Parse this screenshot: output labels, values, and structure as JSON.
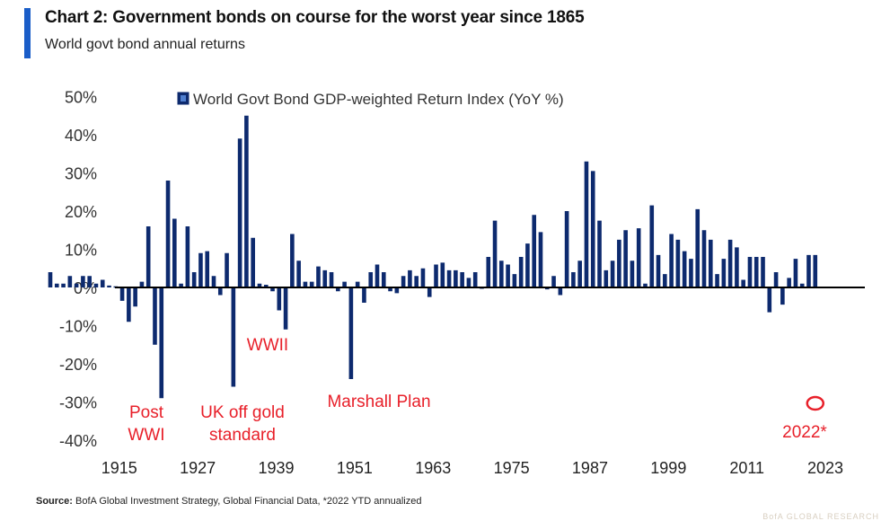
{
  "header": {
    "title": "Chart 2: Government bonds on course for the worst year since 1865",
    "subtitle": "World govt bond annual returns",
    "accent_color": "#1a5dc8"
  },
  "footer": {
    "source_label": "Source:",
    "source_text": "BofA Global Investment Strategy, Global Financial Data, *2022 YTD annualized",
    "watermark": "BofA GLOBAL RESEARCH"
  },
  "chart_data": {
    "type": "bar",
    "title": "Chart 2: Government bonds on course for the worst year since 1865",
    "subtitle": "World govt bond annual returns",
    "xlabel": "",
    "ylabel": "",
    "ylim": [
      -40,
      50
    ],
    "yticks": [
      50,
      40,
      30,
      20,
      10,
      0,
      -10,
      -20,
      -30,
      -40
    ],
    "ytick_labels": [
      "50%",
      "40%",
      "30%",
      "20%",
      "10%",
      "0%",
      "-10%",
      "-20%",
      "-30%",
      "-40%"
    ],
    "xticks": [
      1915,
      1927,
      1939,
      1951,
      1963,
      1975,
      1987,
      1999,
      2011,
      2023
    ],
    "xtick_labels": [
      "1915",
      "1927",
      "1939",
      "1951",
      "1963",
      "1975",
      "1987",
      "1999",
      "2011",
      "2023"
    ],
    "x_range": [
      1904,
      2030
    ],
    "grid": false,
    "legend": {
      "position": "top",
      "entries": [
        "World Govt Bond GDP-weighted Return Index (YoY %)"
      ]
    },
    "bar_color": "#0d2a6e",
    "annotation_color": "#e8202a",
    "annotations": [
      {
        "text": [
          "Post",
          "WWI"
        ],
        "year": 1920
      },
      {
        "text": [
          "UK off gold",
          "standard"
        ],
        "year": 1931
      },
      {
        "text": [
          "WWII"
        ],
        "year": 1940
      },
      {
        "text": [
          "Marshall Plan"
        ],
        "year": 1949
      },
      {
        "text": [
          "2022*"
        ],
        "year": 2022,
        "circle": true
      }
    ],
    "series": [
      {
        "name": "World Govt Bond GDP-weighted Return Index (YoY %)",
        "years": [
          1905,
          1906,
          1907,
          1908,
          1909,
          1910,
          1911,
          1912,
          1913,
          1914,
          1915,
          1916,
          1917,
          1918,
          1919,
          1920,
          1921,
          1922,
          1923,
          1924,
          1925,
          1926,
          1927,
          1928,
          1929,
          1930,
          1931,
          1932,
          1933,
          1934,
          1935,
          1936,
          1937,
          1938,
          1939,
          1940,
          1941,
          1942,
          1943,
          1944,
          1945,
          1946,
          1947,
          1948,
          1949,
          1950,
          1951,
          1952,
          1953,
          1954,
          1955,
          1956,
          1957,
          1958,
          1959,
          1960,
          1961,
          1962,
          1963,
          1964,
          1965,
          1966,
          1967,
          1968,
          1969,
          1970,
          1971,
          1972,
          1973,
          1974,
          1975,
          1976,
          1977,
          1978,
          1979,
          1980,
          1981,
          1982,
          1983,
          1984,
          1985,
          1986,
          1987,
          1988,
          1989,
          1990,
          1991,
          1992,
          1993,
          1994,
          1995,
          1996,
          1997,
          1998,
          1999,
          2000,
          2001,
          2002,
          2003,
          2004,
          2005,
          2006,
          2007,
          2008,
          2009,
          2010,
          2011,
          2012,
          2013,
          2014,
          2015,
          2016,
          2017,
          2018,
          2019,
          2020,
          2021,
          2022
        ],
        "values": [
          4,
          1,
          1,
          3,
          1,
          3,
          3,
          1,
          2,
          0.5,
          0.3,
          -3.5,
          -9,
          -5,
          1.5,
          16,
          -15,
          -29,
          28,
          18,
          1,
          16,
          4,
          9,
          9.5,
          3,
          -2,
          9,
          -26,
          39,
          45,
          13,
          1,
          0.7,
          -1,
          -6,
          -11,
          14,
          7,
          1.5,
          1.5,
          5.5,
          4.5,
          4,
          -1,
          1.5,
          -24,
          1.5,
          -4,
          4,
          6,
          4,
          -1,
          -1.5,
          3,
          4.5,
          3,
          5,
          -2.5,
          6,
          6.5,
          4.5,
          4.5,
          4,
          2.5,
          4,
          -0.3,
          8,
          17.5,
          7,
          6,
          3.5,
          8,
          11.5,
          19,
          14.5,
          -0.5,
          3,
          -2,
          20,
          4,
          7,
          33,
          30.5,
          17.5,
          4.5,
          7,
          12.5,
          15,
          7,
          15.5,
          1,
          21.5,
          8.5,
          3.5,
          14,
          12.5,
          9.5,
          7.5,
          20.5,
          15,
          12.5,
          3.5,
          7.5,
          12.5,
          10.5,
          2,
          8,
          8,
          8,
          -6.5,
          4,
          -4.5,
          2.5,
          7.5,
          1,
          8.5,
          8.5,
          -6,
          -30
        ]
      }
    ]
  }
}
